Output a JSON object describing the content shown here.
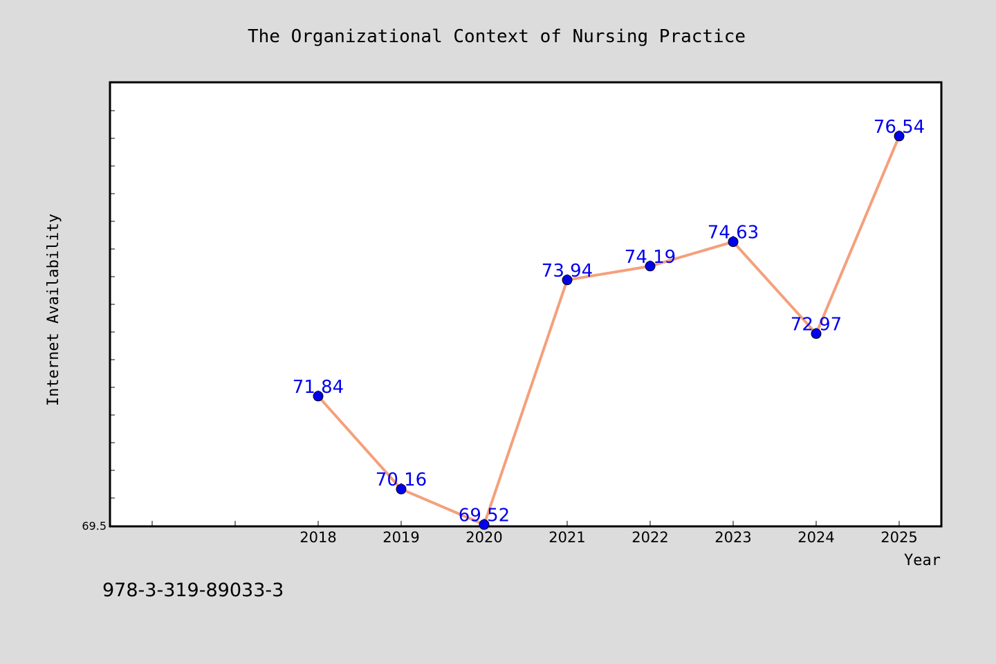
{
  "chart_data": {
    "type": "line",
    "title": "The Organizational Context of Nursing Practice",
    "xlabel": "Year",
    "ylabel": "Internet Availability",
    "x": [
      "2018",
      "2019",
      "2020",
      "2021",
      "2022",
      "2023",
      "2024",
      "2025"
    ],
    "series": [
      {
        "values": [
          71.84,
          70.16,
          69.52,
          73.94,
          74.19,
          74.63,
          72.97,
          76.54
        ],
        "line_color": "#f4a07c",
        "marker_color": "#0000ee"
      }
    ],
    "ylim": [
      69.5,
      77.5
    ],
    "y_tick_labels": [
      "69.5"
    ],
    "grid": false,
    "data_labels": true
  },
  "footer": {
    "isbn": "978-3-319-89033-3"
  },
  "colors": {
    "background": "#dcdcdc",
    "plot_area": "#ffffff",
    "label": "#0000ee"
  }
}
